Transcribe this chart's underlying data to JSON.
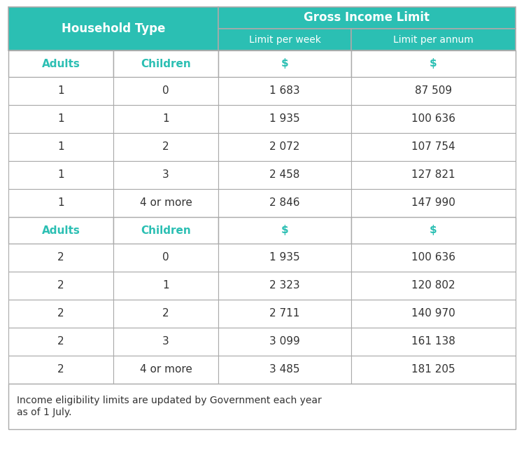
{
  "teal": "#2BBFB3",
  "white": "#FFFFFF",
  "dark_text": "#333333",
  "teal_text": "#2BBFB3",
  "border_color": "#AAAAAA",
  "header1_text": "Household Type",
  "header2_text": "Gross Income Limit",
  "subheader_week": "Limit per week",
  "subheader_annum": "Limit per annum",
  "footer_text": "Income eligibility limits are updated by Government each year\nas of 1 July.",
  "rows": [
    [
      "1",
      "0",
      "1 683",
      "87 509"
    ],
    [
      "1",
      "1",
      "1 935",
      "100 636"
    ],
    [
      "1",
      "2",
      "2 072",
      "107 754"
    ],
    [
      "1",
      "3",
      "2 458",
      "127 821"
    ],
    [
      "1",
      "4 or more",
      "2 846",
      "147 990"
    ],
    [
      "2",
      "0",
      "1 935",
      "100 636"
    ],
    [
      "2",
      "1",
      "2 323",
      "120 802"
    ],
    [
      "2",
      "2",
      "2 711",
      "140 970"
    ],
    [
      "2",
      "3",
      "3 099",
      "161 138"
    ],
    [
      "2",
      "4 or more",
      "3 485",
      "181 205"
    ]
  ]
}
